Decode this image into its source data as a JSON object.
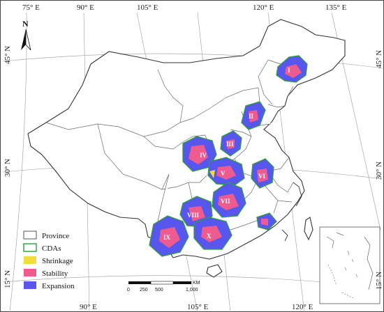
{
  "map": {
    "top_lon_labels": [
      "75° E",
      "90° E",
      "105° E",
      "120° E",
      "135° E"
    ],
    "bottom_lon_labels": [
      "90° E",
      "105° E",
      "120° E"
    ],
    "left_lat_labels": [
      "45° N",
      "30° N",
      "15° N"
    ],
    "right_lat_labels": [
      "45° N",
      "30° N",
      "15° N"
    ],
    "north_label": "N",
    "cda_labels": [
      "I",
      "II",
      "III",
      "IV",
      "V",
      "VI",
      "VII",
      "VIII",
      "IX",
      "X"
    ]
  },
  "legend": {
    "items": [
      {
        "label": "Province",
        "fill": "#ffffff",
        "stroke": "#555555"
      },
      {
        "label": "CDAs",
        "fill": "#ffffff",
        "stroke": "#2e9e3a"
      },
      {
        "label": "Shrinkage",
        "fill": "#f1dd3f",
        "stroke": "#f1dd3f"
      },
      {
        "label": "Stability",
        "fill": "#ee5b8f",
        "stroke": "#ee5b8f"
      },
      {
        "label": "Expansion",
        "fill": "#5757ef",
        "stroke": "#5757ef"
      }
    ]
  },
  "scalebar": {
    "ticks": [
      "0",
      "250",
      "500",
      "1,000"
    ],
    "unit": "KM"
  },
  "colors": {
    "shrinkage": "#f1dd3f",
    "stability": "#ee5b8f",
    "expansion": "#5757ef",
    "cda_outline": "#2e9e3a"
  }
}
